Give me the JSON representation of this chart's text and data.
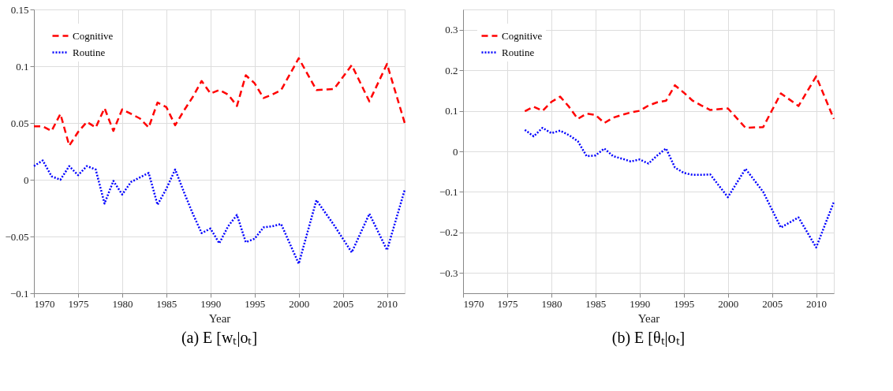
{
  "chart_data": [
    {
      "type": "line",
      "xlabel": "Year",
      "annotations": [
        "(a) E [wₜ|oₜ]"
      ],
      "xlim": [
        1970,
        2012
      ],
      "xticks": [
        1970,
        1975,
        1980,
        1985,
        1990,
        1995,
        2000,
        2005,
        2010
      ],
      "ylim": [
        -0.1,
        0.15
      ],
      "yticks": [
        -0.1,
        -0.05,
        0,
        0.05,
        0.1,
        0.15
      ],
      "grid": true,
      "legend": "top left",
      "x": [
        1970,
        1971,
        1972,
        1973,
        1974,
        1975,
        1976,
        1977,
        1978,
        1979,
        1980,
        1981,
        1982,
        1983,
        1984,
        1985,
        1986,
        1987,
        1988,
        1989,
        1990,
        1991,
        1992,
        1993,
        1994,
        1995,
        1996,
        1997,
        1998,
        2000,
        2002,
        2004,
        2006,
        2008,
        2010,
        2012
      ],
      "series": [
        {
          "name": "Cognitive",
          "color": "#ff0000",
          "line_style": "dashed",
          "values": [
            0.047,
            0.047,
            0.043,
            0.058,
            0.03,
            0.042,
            0.051,
            0.046,
            0.063,
            0.043,
            0.062,
            0.058,
            0.054,
            0.046,
            0.068,
            0.064,
            0.048,
            0.061,
            0.073,
            0.087,
            0.076,
            0.079,
            0.075,
            0.065,
            0.092,
            0.085,
            0.072,
            0.075,
            0.079,
            0.107,
            0.079,
            0.08,
            0.101,
            0.069,
            0.102,
            0.05
          ]
        },
        {
          "name": "Routine",
          "color": "#0000ff",
          "line_style": "dotted",
          "values": [
            0.012,
            0.017,
            0.003,
            0.0,
            0.012,
            0.004,
            0.012,
            0.009,
            -0.021,
            -0.001,
            -0.013,
            -0.002,
            0.002,
            0.006,
            -0.022,
            -0.008,
            0.009,
            -0.011,
            -0.03,
            -0.047,
            -0.043,
            -0.056,
            -0.041,
            -0.031,
            -0.055,
            -0.052,
            -0.042,
            -0.041,
            -0.039,
            -0.074,
            -0.018,
            -0.04,
            -0.064,
            -0.03,
            -0.062,
            -0.009
          ]
        }
      ]
    },
    {
      "type": "line",
      "xlabel": "Year",
      "annotations": [
        "(b)  E [θₜ|oₜ]"
      ],
      "xlim": [
        1970,
        2012
      ],
      "xticks": [
        1970,
        1975,
        1980,
        1985,
        1990,
        1995,
        2000,
        2005,
        2010
      ],
      "ylim": [
        -0.35,
        0.35
      ],
      "yticks": [
        -0.3,
        -0.2,
        -0.1,
        0,
        0.1,
        0.2,
        0.3
      ],
      "grid": true,
      "legend": "top left",
      "x": [
        1977,
        1978,
        1979,
        1980,
        1981,
        1982,
        1983,
        1984,
        1985,
        1986,
        1987,
        1988,
        1989,
        1990,
        1991,
        1992,
        1993,
        1994,
        1995,
        1996,
        1997,
        1998,
        2000,
        2002,
        2004,
        2006,
        2008,
        2010,
        2012
      ],
      "series": [
        {
          "name": "Cognitive",
          "color": "#ff0000",
          "line_style": "dashed",
          "values": [
            0.099,
            0.11,
            0.1,
            0.122,
            0.135,
            0.11,
            0.08,
            0.093,
            0.09,
            0.07,
            0.083,
            0.09,
            0.096,
            0.1,
            0.113,
            0.121,
            0.125,
            0.163,
            0.145,
            0.125,
            0.113,
            0.102,
            0.106,
            0.058,
            0.06,
            0.143,
            0.112,
            0.185,
            0.08
          ]
        },
        {
          "name": "Routine",
          "color": "#0000ff",
          "line_style": "dotted",
          "values": [
            0.053,
            0.037,
            0.058,
            0.045,
            0.051,
            0.04,
            0.025,
            -0.012,
            -0.01,
            0.007,
            -0.012,
            -0.018,
            -0.025,
            -0.02,
            -0.03,
            -0.01,
            0.007,
            -0.04,
            -0.053,
            -0.058,
            -0.058,
            -0.057,
            -0.113,
            -0.043,
            -0.1,
            -0.188,
            -0.163,
            -0.237,
            -0.125
          ]
        }
      ]
    }
  ]
}
